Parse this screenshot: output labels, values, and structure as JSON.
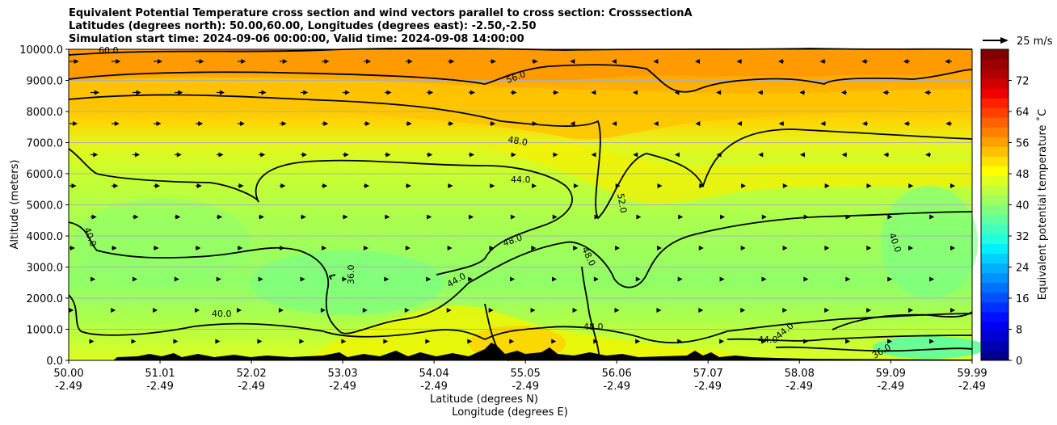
{
  "figure": {
    "title_lines": [
      "Equivalent Potential Temperature cross section and wind vectors parallel to cross section: CrosssectionA",
      "Latitudes (degrees north): 50.00,60.00, Longitudes (degrees east): -2.50,-2.50",
      "Simulation start time: 2024-09-06 00:00:00, Valid time: 2024-09-08 14:00:00"
    ]
  },
  "chart_data": {
    "type": "heatmap",
    "ylabel": "Altitude (meters)",
    "xlabel_line1": "Latitude (degrees N)",
    "xlabel_line2": "Longitude (degrees E)",
    "ylim": [
      0,
      10000
    ],
    "y_ticks": [
      "0.0",
      "1000.0",
      "2000.0",
      "3000.0",
      "4000.0",
      "5000.0",
      "6000.0",
      "7000.0",
      "8000.0",
      "9000.0",
      "10000.0"
    ],
    "x_ticks": [
      {
        "lat": "50.00",
        "lon": "-2.49"
      },
      {
        "lat": "51.01",
        "lon": "-2.49"
      },
      {
        "lat": "52.02",
        "lon": "-2.49"
      },
      {
        "lat": "53.03",
        "lon": "-2.49"
      },
      {
        "lat": "54.04",
        "lon": "-2.49"
      },
      {
        "lat": "55.05",
        "lon": "-2.49"
      },
      {
        "lat": "56.06",
        "lon": "-2.49"
      },
      {
        "lat": "57.07",
        "lon": "-2.49"
      },
      {
        "lat": "58.08",
        "lon": "-2.49"
      },
      {
        "lat": "59.09",
        "lon": "-2.49"
      },
      {
        "lat": "59.99",
        "lon": "-2.49"
      }
    ],
    "horizontal_grid": true,
    "colorbar": {
      "label": "Equivalent potential temperature ˚C",
      "range": [
        0,
        80
      ],
      "ticks": [
        "0",
        "8",
        "16",
        "24",
        "32",
        "40",
        "48",
        "56",
        "64",
        "72"
      ]
    },
    "wind_reference": {
      "label": "25 m/s"
    },
    "contour_labels": [
      "60.0",
      "56.0",
      "48.0",
      "44.0",
      "52.0",
      "40.0",
      "36.0",
      "48.0",
      "44.0",
      "48.0",
      "40.0",
      "44.0",
      "48.0",
      "44.0",
      "36.0",
      "40.0"
    ]
  }
}
